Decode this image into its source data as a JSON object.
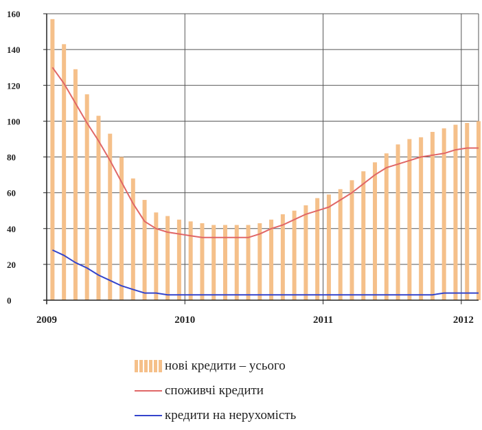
{
  "chart_data": {
    "type": "bar+line",
    "title": "",
    "xlabel": "",
    "ylabel": "",
    "ylim": [
      0,
      160
    ],
    "y_ticks": [
      0,
      20,
      40,
      60,
      80,
      100,
      120,
      140,
      160
    ],
    "y_tick_labels": [
      "0",
      "20",
      "40",
      "60",
      "80",
      "100",
      "120",
      "140",
      "160"
    ],
    "x_range": [
      "2009-01",
      "2012-02"
    ],
    "x_ticks": [
      "2009-01",
      "2010-01",
      "2011-01",
      "2012-01"
    ],
    "x_tick_labels": [
      "2009",
      "2010",
      "2011",
      "2012"
    ],
    "grid": true,
    "legend_position": "bottom",
    "categories": [
      "2009-01",
      "2009-02",
      "2009-03",
      "2009-04",
      "2009-05",
      "2009-06",
      "2009-07",
      "2009-08",
      "2009-09",
      "2009-10",
      "2009-11",
      "2009-12",
      "2010-01",
      "2010-02",
      "2010-03",
      "2010-04",
      "2010-05",
      "2010-06",
      "2010-07",
      "2010-08",
      "2010-09",
      "2010-10",
      "2010-11",
      "2010-12",
      "2011-01",
      "2011-02",
      "2011-03",
      "2011-04",
      "2011-05",
      "2011-06",
      "2011-07",
      "2011-08",
      "2011-09",
      "2011-10",
      "2011-11",
      "2011-12",
      "2012-01",
      "2012-02"
    ],
    "series": [
      {
        "name": "нові кредити – усього",
        "type": "bar",
        "color": "#f5c08a",
        "values": [
          157,
          143,
          129,
          115,
          103,
          93,
          80,
          68,
          56,
          49,
          47,
          45,
          44,
          43,
          42,
          42,
          42,
          42,
          43,
          45,
          48,
          50,
          53,
          57,
          59,
          62,
          67,
          72,
          77,
          82,
          87,
          90,
          91,
          94,
          96,
          98,
          99,
          100
        ]
      },
      {
        "name": "споживчі кредити",
        "type": "line",
        "color": "#e06666",
        "values": [
          130,
          121,
          110,
          99,
          89,
          78,
          66,
          54,
          44,
          40,
          38,
          37,
          36,
          35,
          35,
          35,
          35,
          35,
          37,
          40,
          42,
          45,
          48,
          50,
          52,
          56,
          60,
          65,
          70,
          74,
          76,
          78,
          80,
          81,
          82,
          84,
          85,
          85
        ]
      },
      {
        "name": "кредити на нерухомість",
        "type": "line",
        "color": "#3344cc",
        "values": [
          28,
          25,
          21,
          18,
          14,
          11,
          8,
          6,
          4,
          4,
          3,
          3,
          3,
          3,
          3,
          3,
          3,
          3,
          3,
          3,
          3,
          3,
          3,
          3,
          3,
          3,
          3,
          3,
          3,
          3,
          3,
          3,
          3,
          3,
          4,
          4,
          4,
          4
        ]
      }
    ]
  }
}
